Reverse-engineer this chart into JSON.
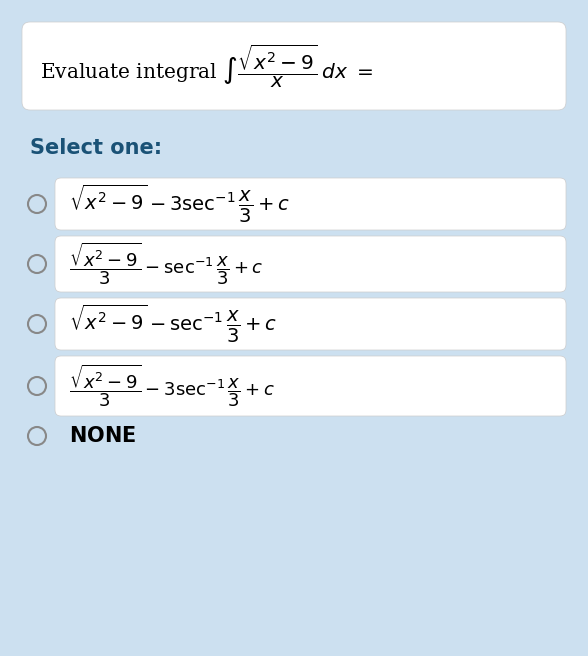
{
  "background_color": "#cce0f0",
  "question_box_color": "#ffffff",
  "option_box_color": "#ffffff",
  "title_text": "Evaluate integral $\\int \\frac{\\sqrt{x^2-9}}{x}\\,dx =$",
  "select_text": "Select one:",
  "select_color": "#1a5276",
  "options": [
    "$\\sqrt{x^2-9} - 3\\sec^{-1}\\dfrac{x}{3} + c$",
    "$\\dfrac{\\sqrt{x^2-9}}{3} - \\sec^{-1}\\dfrac{x}{3} + c$",
    "$\\sqrt{x^2-9} - \\sec^{-1}\\dfrac{x}{3} + c$",
    "$\\dfrac{\\sqrt{x^2-9}}{3} - 3\\sec^{-1}\\dfrac{x}{3} + c$",
    "NONE"
  ],
  "fig_width": 5.88,
  "fig_height": 6.56,
  "dpi": 100
}
